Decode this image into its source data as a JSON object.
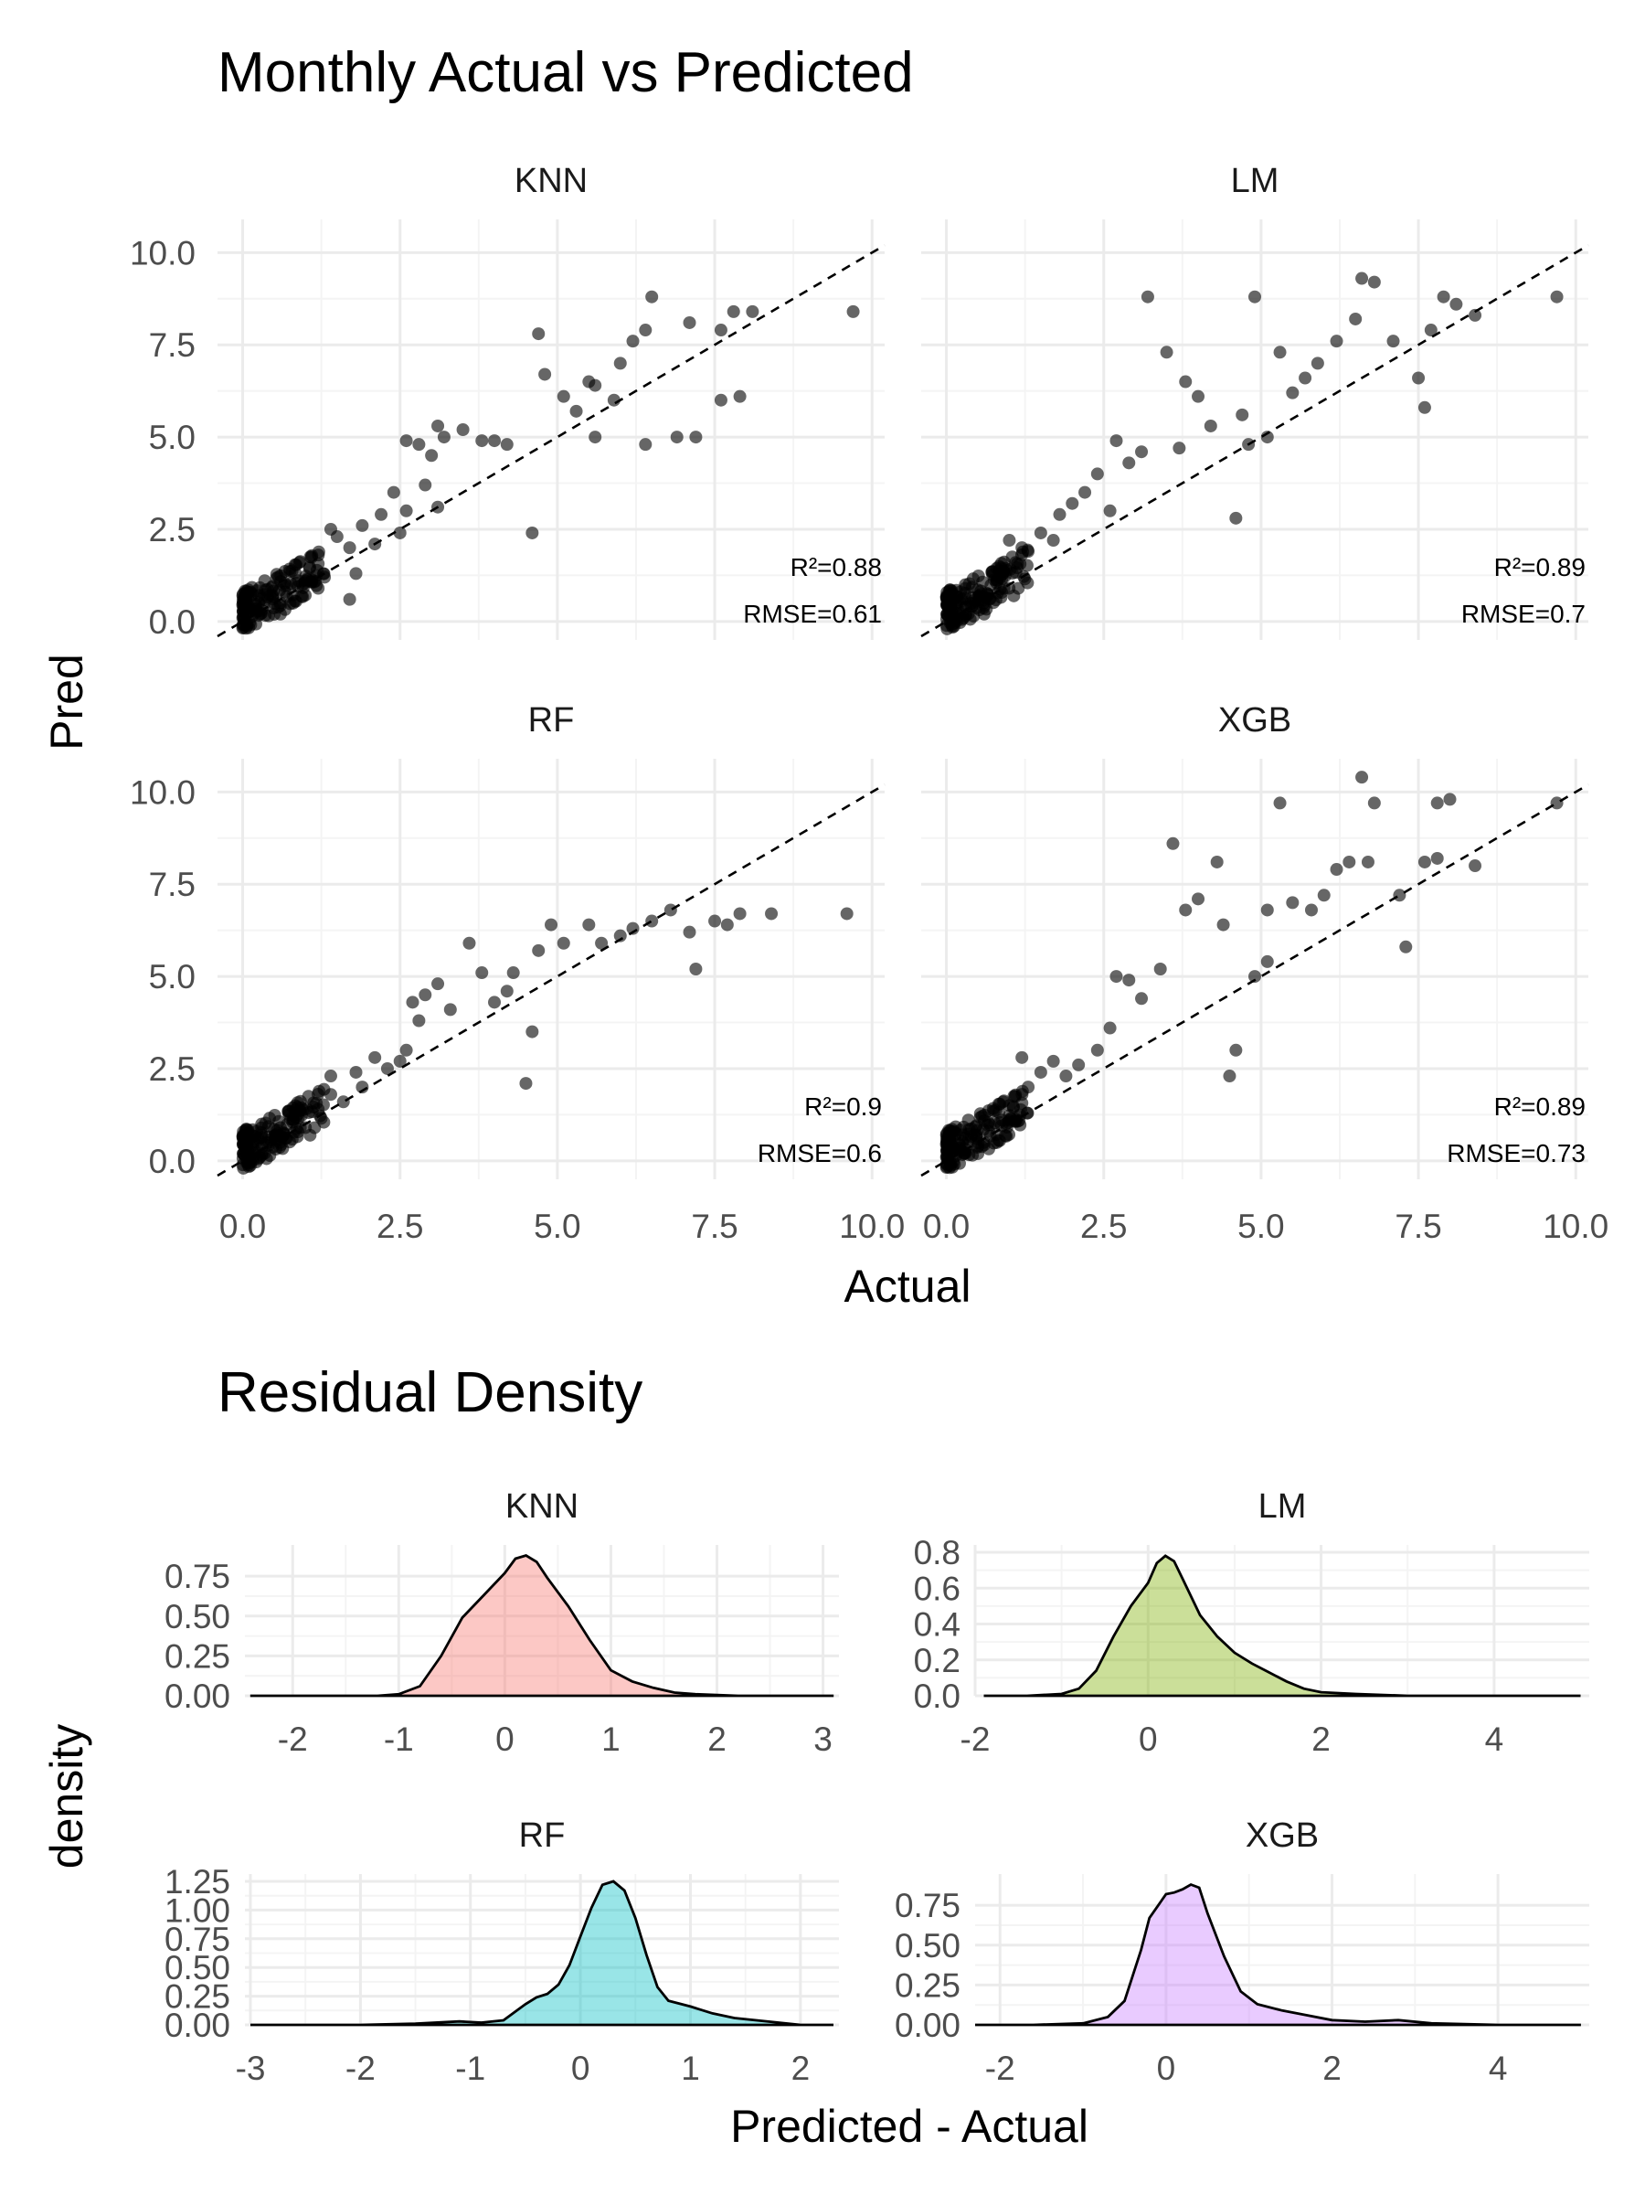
{
  "top": {
    "title": "Monthly Actual vs Predicted",
    "xlabel": "Actual",
    "ylabel": "Pred",
    "x_ticks": [
      "0.0",
      "2.5",
      "5.0",
      "7.5",
      "10.0"
    ],
    "y_ticks": [
      "0.0",
      "2.5",
      "5.0",
      "7.5",
      "10.0"
    ]
  },
  "bottom": {
    "title": "Residual Density",
    "xlabel": "Predicted - Actual",
    "ylabel": "density"
  },
  "colors": {
    "KNN": "#F8766D",
    "LM": "#7CAE00",
    "RF": "#00BFC4",
    "XGB": "#C77CFF"
  },
  "chart_data": [
    {
      "type": "scatter",
      "title": "Monthly Actual vs Predicted",
      "xlabel": "Actual",
      "ylabel": "Pred",
      "xlim": [
        -0.4,
        10.2
      ],
      "ylim": [
        -0.5,
        10.9
      ],
      "reference_line": "y = x (dashed)",
      "panels": [
        {
          "name": "KNN",
          "r2_label": "R²=0.88",
          "rmse_label": "RMSE=0.61",
          "points": [
            [
              9.7,
              8.4
            ],
            [
              8.1,
              8.4
            ],
            [
              7.8,
              8.4
            ],
            [
              7.6,
              7.9
            ],
            [
              7.1,
              8.1
            ],
            [
              6.5,
              8.8
            ],
            [
              6.4,
              7.9
            ],
            [
              6.2,
              7.6
            ],
            [
              6.0,
              7.0
            ],
            [
              5.9,
              6.0
            ],
            [
              5.6,
              5.0
            ],
            [
              6.9,
              5.0
            ],
            [
              7.6,
              6.0
            ],
            [
              7.9,
              6.1
            ],
            [
              7.2,
              5.0
            ],
            [
              6.4,
              4.8
            ],
            [
              5.1,
              6.1
            ],
            [
              5.3,
              5.7
            ],
            [
              5.5,
              6.5
            ],
            [
              5.6,
              6.4
            ],
            [
              4.8,
              6.7
            ],
            [
              4.7,
              7.8
            ],
            [
              4.6,
              2.4
            ],
            [
              4.2,
              4.8
            ],
            [
              4.0,
              4.9
            ],
            [
              3.8,
              4.9
            ],
            [
              3.5,
              5.2
            ],
            [
              3.1,
              5.3
            ],
            [
              3.2,
              5.0
            ],
            [
              3.0,
              4.5
            ],
            [
              2.8,
              4.8
            ],
            [
              2.6,
              4.9
            ],
            [
              2.9,
              3.7
            ],
            [
              3.1,
              3.1
            ],
            [
              2.6,
              3.0
            ],
            [
              2.4,
              3.5
            ],
            [
              2.2,
              2.9
            ],
            [
              2.5,
              2.4
            ],
            [
              2.1,
              2.1
            ],
            [
              1.9,
              2.6
            ],
            [
              1.7,
              2.0
            ],
            [
              1.5,
              2.3
            ],
            [
              1.8,
              1.3
            ],
            [
              1.7,
              0.6
            ],
            [
              1.3,
              1.2
            ],
            [
              1.4,
              2.5
            ],
            [
              0.6,
              0.2
            ],
            [
              1.2,
              0.9
            ]
          ]
        },
        {
          "name": "LM",
          "r2_label": "R²=0.89",
          "rmse_label": "RMSE=0.7",
          "points": [
            [
              9.7,
              8.8
            ],
            [
              8.4,
              8.3
            ],
            [
              8.1,
              8.6
            ],
            [
              7.9,
              8.8
            ],
            [
              7.7,
              7.9
            ],
            [
              7.5,
              6.6
            ],
            [
              7.6,
              5.8
            ],
            [
              7.1,
              7.6
            ],
            [
              6.6,
              9.3
            ],
            [
              6.8,
              9.2
            ],
            [
              6.5,
              8.2
            ],
            [
              6.2,
              7.6
            ],
            [
              5.9,
              7.0
            ],
            [
              5.7,
              6.6
            ],
            [
              5.5,
              6.2
            ],
            [
              5.3,
              7.3
            ],
            [
              5.1,
              5.0
            ],
            [
              4.8,
              4.8
            ],
            [
              4.6,
              2.8
            ],
            [
              4.7,
              5.6
            ],
            [
              4.9,
              8.8
            ],
            [
              4.2,
              5.3
            ],
            [
              4.0,
              6.1
            ],
            [
              3.8,
              6.5
            ],
            [
              3.7,
              4.7
            ],
            [
              3.5,
              7.3
            ],
            [
              3.2,
              8.8
            ],
            [
              3.1,
              4.6
            ],
            [
              2.9,
              4.3
            ],
            [
              2.7,
              4.9
            ],
            [
              2.6,
              3.0
            ],
            [
              2.4,
              4.0
            ],
            [
              2.2,
              3.5
            ],
            [
              2.0,
              3.2
            ],
            [
              1.8,
              2.9
            ],
            [
              1.7,
              2.2
            ],
            [
              1.5,
              2.4
            ],
            [
              1.3,
              1.9
            ],
            [
              1.1,
              1.6
            ],
            [
              0.9,
              1.3
            ],
            [
              1.2,
              2.0
            ],
            [
              1.0,
              2.2
            ],
            [
              0.6,
              0.2
            ],
            [
              0.4,
              0.4
            ]
          ]
        },
        {
          "name": "RF",
          "r2_label": "R²=0.9",
          "rmse_label": "RMSE=0.6",
          "points": [
            [
              9.6,
              6.7
            ],
            [
              8.4,
              6.7
            ],
            [
              7.9,
              6.7
            ],
            [
              7.7,
              6.4
            ],
            [
              7.5,
              6.5
            ],
            [
              7.2,
              5.2
            ],
            [
              7.1,
              6.2
            ],
            [
              6.8,
              6.8
            ],
            [
              6.5,
              6.5
            ],
            [
              6.2,
              6.3
            ],
            [
              6.0,
              6.1
            ],
            [
              5.7,
              5.9
            ],
            [
              5.5,
              6.4
            ],
            [
              5.1,
              5.9
            ],
            [
              4.9,
              6.4
            ],
            [
              4.7,
              5.7
            ],
            [
              4.6,
              3.5
            ],
            [
              4.5,
              2.1
            ],
            [
              4.3,
              5.1
            ],
            [
              4.2,
              4.6
            ],
            [
              4.0,
              4.3
            ],
            [
              3.8,
              5.1
            ],
            [
              3.6,
              5.9
            ],
            [
              3.3,
              4.1
            ],
            [
              3.1,
              4.8
            ],
            [
              2.9,
              4.5
            ],
            [
              2.8,
              3.8
            ],
            [
              2.7,
              4.3
            ],
            [
              2.6,
              3.0
            ],
            [
              2.5,
              2.7
            ],
            [
              2.3,
              2.5
            ],
            [
              2.1,
              2.8
            ],
            [
              1.9,
              2.0
            ],
            [
              1.8,
              2.4
            ],
            [
              1.6,
              1.6
            ],
            [
              1.4,
              1.8
            ],
            [
              1.4,
              2.3
            ],
            [
              1.2,
              1.4
            ],
            [
              0.6,
              0.9
            ],
            [
              0.3,
              0.7
            ]
          ]
        },
        {
          "name": "XGB",
          "r2_label": "R²=0.89",
          "rmse_label": "RMSE=0.73",
          "points": [
            [
              9.7,
              9.7
            ],
            [
              8.4,
              8.0
            ],
            [
              8.0,
              9.8
            ],
            [
              7.8,
              9.7
            ],
            [
              7.8,
              8.2
            ],
            [
              7.6,
              8.1
            ],
            [
              7.3,
              5.8
            ],
            [
              7.2,
              7.2
            ],
            [
              6.7,
              8.1
            ],
            [
              6.6,
              10.4
            ],
            [
              6.8,
              9.7
            ],
            [
              6.4,
              8.1
            ],
            [
              6.2,
              7.9
            ],
            [
              6.0,
              7.2
            ],
            [
              5.8,
              6.8
            ],
            [
              5.5,
              7.0
            ],
            [
              5.3,
              9.7
            ],
            [
              5.1,
              6.8
            ],
            [
              5.1,
              5.4
            ],
            [
              4.9,
              5.0
            ],
            [
              4.6,
              3.0
            ],
            [
              4.5,
              2.3
            ],
            [
              4.4,
              6.4
            ],
            [
              4.3,
              8.1
            ],
            [
              4.0,
              7.1
            ],
            [
              3.8,
              6.8
            ],
            [
              3.6,
              8.6
            ],
            [
              3.4,
              5.2
            ],
            [
              3.1,
              4.4
            ],
            [
              2.9,
              4.9
            ],
            [
              2.7,
              5.0
            ],
            [
              2.6,
              3.6
            ],
            [
              2.4,
              3.0
            ],
            [
              2.1,
              2.6
            ],
            [
              1.9,
              2.3
            ],
            [
              1.7,
              2.7
            ],
            [
              1.5,
              2.4
            ],
            [
              1.3,
              2.0
            ],
            [
              1.2,
              2.8
            ],
            [
              1.0,
              1.5
            ],
            [
              0.5,
              0.4
            ],
            [
              0.3,
              0.2
            ]
          ]
        }
      ]
    },
    {
      "type": "area",
      "title": "Residual Density",
      "xlabel": "Predicted - Actual",
      "ylabel": "density",
      "panels": [
        {
          "name": "KNN",
          "xlim": [
            -2.45,
            3.15
          ],
          "ylim": [
            0,
            0.9
          ],
          "x_ticks": [
            -2,
            -1,
            0,
            1,
            2,
            3
          ],
          "y_ticks": [
            "0.00",
            "0.25",
            "0.50",
            "0.75"
          ],
          "x": [
            -2.4,
            -2.0,
            -1.6,
            -1.2,
            -1.0,
            -0.8,
            -0.6,
            -0.4,
            -0.2,
            0.0,
            0.1,
            0.2,
            0.3,
            0.4,
            0.6,
            0.8,
            1.0,
            1.2,
            1.4,
            1.6,
            1.8,
            2.2,
            2.6,
            3.1
          ],
          "y": [
            0.0,
            0.0,
            0.0,
            0.0,
            0.01,
            0.06,
            0.25,
            0.49,
            0.63,
            0.77,
            0.86,
            0.88,
            0.84,
            0.74,
            0.56,
            0.35,
            0.16,
            0.09,
            0.05,
            0.02,
            0.01,
            0.0,
            0.0,
            0.0
          ]
        },
        {
          "name": "LM",
          "xlim": [
            -2.0,
            5.1
          ],
          "ylim": [
            0,
            0.8
          ],
          "x_ticks": [
            -2,
            0,
            2,
            4
          ],
          "y_ticks": [
            "0.0",
            "0.2",
            "0.4",
            "0.6",
            "0.8"
          ],
          "x": [
            -1.9,
            -1.4,
            -1.0,
            -0.8,
            -0.6,
            -0.4,
            -0.2,
            0.0,
            0.1,
            0.2,
            0.3,
            0.4,
            0.6,
            0.8,
            1.0,
            1.2,
            1.4,
            1.6,
            1.8,
            2.0,
            2.4,
            3.0,
            4.0,
            5.0
          ],
          "y": [
            0.0,
            0.0,
            0.01,
            0.04,
            0.14,
            0.33,
            0.5,
            0.63,
            0.74,
            0.78,
            0.75,
            0.65,
            0.45,
            0.33,
            0.24,
            0.18,
            0.13,
            0.08,
            0.04,
            0.02,
            0.01,
            0.0,
            0.0,
            0.0
          ]
        },
        {
          "name": "RF",
          "xlim": [
            -3.05,
            2.35
          ],
          "ylim": [
            0,
            1.25
          ],
          "x_ticks": [
            -3,
            -2,
            -1,
            0,
            1,
            2
          ],
          "y_ticks": [
            "0.00",
            "0.25",
            "0.50",
            "0.75",
            "1.00",
            "1.25"
          ],
          "x": [
            -3.0,
            -2.5,
            -2.0,
            -1.5,
            -1.1,
            -0.9,
            -0.7,
            -0.5,
            -0.4,
            -0.3,
            -0.2,
            -0.1,
            0.0,
            0.1,
            0.2,
            0.3,
            0.4,
            0.5,
            0.6,
            0.7,
            0.8,
            1.0,
            1.2,
            1.4,
            1.6,
            1.8,
            2.0,
            2.3
          ],
          "y": [
            0.0,
            0.0,
            0.0,
            0.01,
            0.03,
            0.02,
            0.04,
            0.18,
            0.24,
            0.27,
            0.35,
            0.52,
            0.77,
            1.02,
            1.22,
            1.25,
            1.17,
            0.93,
            0.61,
            0.33,
            0.21,
            0.16,
            0.1,
            0.06,
            0.04,
            0.02,
            0.0,
            0.0
          ]
        },
        {
          "name": "XGB",
          "xlim": [
            -2.3,
            5.1
          ],
          "ylim": [
            0,
            0.9
          ],
          "x_ticks": [
            -2,
            0,
            2,
            4
          ],
          "y_ticks": [
            "0.00",
            "0.25",
            "0.50",
            "0.75"
          ],
          "x": [
            -2.3,
            -1.6,
            -1.0,
            -0.7,
            -0.5,
            -0.3,
            -0.2,
            0.0,
            0.1,
            0.2,
            0.3,
            0.4,
            0.5,
            0.7,
            0.9,
            1.1,
            1.4,
            1.7,
            2.0,
            2.4,
            2.8,
            3.2,
            4.0,
            5.0
          ],
          "y": [
            0.0,
            0.0,
            0.01,
            0.05,
            0.15,
            0.47,
            0.67,
            0.82,
            0.83,
            0.85,
            0.88,
            0.86,
            0.7,
            0.43,
            0.21,
            0.13,
            0.09,
            0.06,
            0.03,
            0.02,
            0.03,
            0.01,
            0.0,
            0.0
          ]
        }
      ]
    }
  ]
}
